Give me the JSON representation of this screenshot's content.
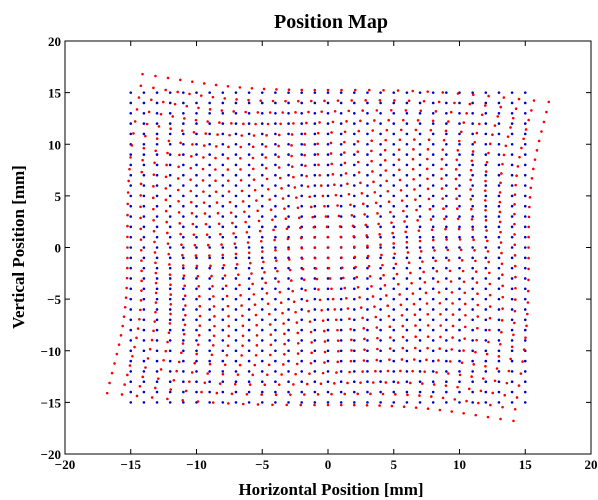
{
  "chart_data": {
    "type": "scatter",
    "title": "Position Map",
    "xlabel": "Horizontal Position [mm]",
    "ylabel": "Vertical Position [mm]",
    "xlim": [
      -20,
      20
    ],
    "ylim": [
      -20,
      20
    ],
    "xticks": [
      -20,
      -15,
      -10,
      -5,
      0,
      5,
      10,
      15,
      20
    ],
    "yticks": [
      -20,
      -15,
      -10,
      -5,
      0,
      5,
      10,
      15,
      20
    ],
    "grid": false,
    "legend": "none",
    "series": [
      {
        "role": "reference-grid",
        "color": "#0000cc",
        "grid_spacing": 1,
        "x_range": [
          -15,
          15
        ],
        "y_range": [
          -15,
          15
        ]
      },
      {
        "role": "distorted-grid",
        "color": "#ff0000",
        "grid_spacing": 1,
        "x_range": [
          -15,
          15
        ],
        "y_range": [
          -15,
          15
        ],
        "corner_points": [
          [
            -17.2,
            17.2
          ],
          [
            17.2,
            17.2
          ],
          [
            -17.2,
            -17.3
          ],
          [
            17.4,
            -17.3
          ]
        ]
      }
    ]
  }
}
